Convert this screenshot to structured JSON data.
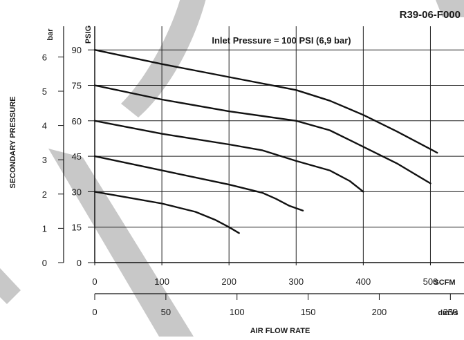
{
  "chart_data": {
    "type": "line",
    "title": "R39-06-F000",
    "annotation": "Inlet Pressure = 100 PSI (6,9 bar)",
    "xlabel": "AIR FLOW RATE",
    "ylabel": "SECONDARY PRESSURE",
    "x_units": {
      "primary": "SCFM",
      "secondary": "dm³/s"
    },
    "y_units": {
      "primary": "PSIG",
      "secondary": "bar"
    },
    "x_primary_ticks": [
      "0",
      "100",
      "200",
      "300",
      "400",
      "500"
    ],
    "x_secondary_ticks": [
      "0",
      "50",
      "100",
      "150",
      "200",
      "250"
    ],
    "y_primary_ticks": [
      "0",
      "15",
      "30",
      "45",
      "60",
      "75",
      "90"
    ],
    "y_secondary_ticks": [
      "0",
      "1",
      "2",
      "3",
      "4",
      "5",
      "6"
    ],
    "xlim": [
      0,
      550
    ],
    "ylim": [
      0,
      100
    ],
    "grid": true,
    "watermark_color": "#c8c8c8",
    "series": [
      {
        "x": [
          0,
          100,
          200,
          300,
          350,
          400,
          450,
          500,
          510
        ],
        "y": [
          90,
          84,
          78.5,
          73,
          68.5,
          62.5,
          55.5,
          48,
          46.5
        ]
      },
      {
        "x": [
          0,
          100,
          200,
          300,
          350,
          400,
          450,
          500
        ],
        "y": [
          75,
          69,
          64,
          60,
          56,
          49,
          42,
          33.5
        ]
      },
      {
        "x": [
          0,
          100,
          200,
          250,
          300,
          350,
          380,
          400
        ],
        "y": [
          60,
          54.5,
          50,
          47.5,
          43,
          39,
          34.5,
          30
        ]
      },
      {
        "x": [
          0,
          100,
          200,
          250,
          270,
          290,
          310
        ],
        "y": [
          45,
          39,
          33,
          29.5,
          27,
          24,
          22
        ]
      },
      {
        "x": [
          0,
          50,
          100,
          150,
          180,
          200,
          215
        ],
        "y": [
          30,
          27.5,
          25,
          21.5,
          18,
          15,
          12.5
        ]
      }
    ]
  }
}
